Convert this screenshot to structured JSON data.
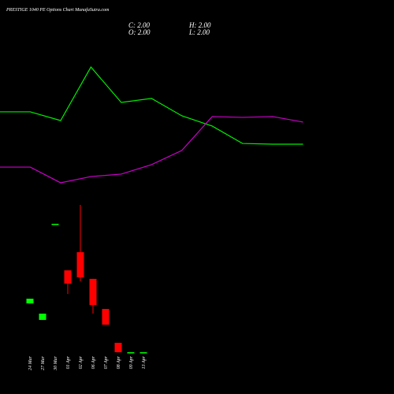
{
  "header": {
    "title": "PRESTIGE 1040 PE Options Chart MunafaSutra.com",
    "close": "C: 2.00",
    "high": "H: 2.00",
    "open": "O: 2.00",
    "low": "L: 2.00"
  },
  "chart_data": [
    {
      "type": "candlestick",
      "categories": [
        "24 Mar",
        "27 Mar",
        "30 Mar",
        "01 Apr",
        "02 Apr",
        "06 Apr",
        "07 Apr",
        "08 Apr",
        "09 Apr",
        "13 Apr"
      ],
      "open": [
        4.58,
        3.71,
        8.79,
        6.33,
        7.29,
        5.88,
        4.29,
        2.5,
        2.0,
        2.0
      ],
      "high": [
        4.83,
        4.04,
        8.79,
        6.33,
        9.79,
        5.88,
        4.29,
        2.5,
        2.0,
        2.0
      ],
      "low": [
        4.58,
        3.71,
        8.79,
        5.08,
        5.75,
        4.04,
        3.46,
        2.0,
        2.0,
        2.0
      ],
      "close": [
        4.83,
        4.04,
        8.79,
        5.63,
        5.96,
        4.5,
        3.46,
        2.0,
        2.0,
        2.0
      ],
      "up_color": "#00ff00",
      "down_color": "#ff0000",
      "ylim": [
        0,
        20
      ]
    },
    {
      "type": "line",
      "x": [
        0,
        1,
        2,
        3,
        4,
        5,
        6,
        7,
        8,
        9,
        10
      ],
      "xlim": [
        0,
        13
      ],
      "ylim": [
        0,
        20
      ],
      "series": [
        {
          "color": "#00ee00",
          "values": [
            14.71,
            14.71,
            14.25,
            17.08,
            15.21,
            15.42,
            14.5,
            13.96,
            13.04,
            13.0,
            13.0
          ]
        },
        {
          "color": "#cc00cc",
          "values": [
            11.79,
            11.79,
            10.96,
            11.29,
            11.42,
            11.92,
            12.67,
            14.46,
            14.42,
            14.46,
            14.17
          ]
        }
      ]
    }
  ]
}
